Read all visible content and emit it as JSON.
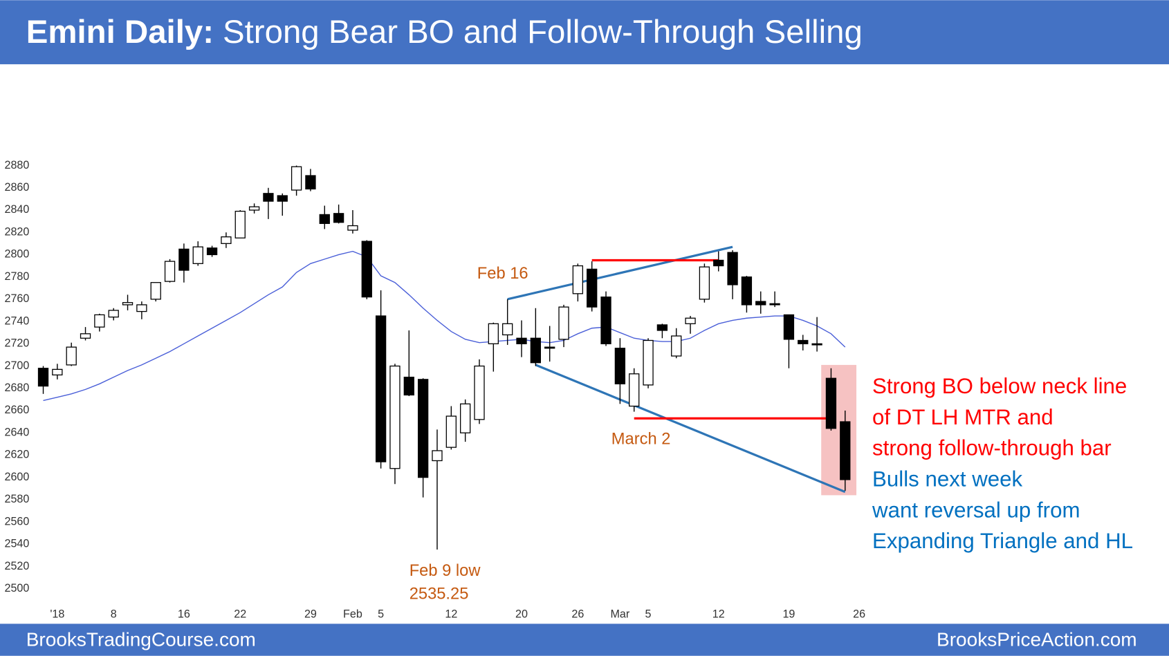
{
  "chart_data": {
    "type": "candlestick",
    "title": "Emini Daily:",
    "subtitle": "Strong Bear BO and Follow-Through Selling",
    "footer_left": "BrooksTradingCourse.com",
    "footer_right": "BrooksPriceAction.com",
    "banner_color": "#4472c4",
    "up_color": "#ffffff",
    "down_color": "#000000",
    "open": [
      2698,
      2692,
      2701,
      2725,
      2735,
      2744,
      2755,
      2749,
      2760,
      2776,
      2805,
      2792,
      2806,
      2810,
      2815,
      2840,
      2855,
      2853,
      2858,
      2871,
      2836,
      2837,
      2822,
      2812,
      2745,
      2608,
      2690,
      2688,
      2615,
      2627,
      2640,
      2652,
      2720,
      2728,
      2725,
      2725,
      2717,
      2724,
      2765,
      2787,
      2762,
      2716,
      2664,
      2683,
      2737,
      2709,
      2738,
      2760,
      2795,
      2802,
      2780,
      2758,
      2756,
      2746,
      2723,
      2720,
      2689,
      2650
    ],
    "high": [
      2700,
      2702,
      2721,
      2735,
      2747,
      2752,
      2764,
      2758,
      2775,
      2796,
      2810,
      2812,
      2808,
      2820,
      2840,
      2846,
      2860,
      2855,
      2880,
      2877,
      2844,
      2845,
      2840,
      2813,
      2768,
      2702,
      2732,
      2689,
      2643,
      2664,
      2670,
      2706,
      2739,
      2760,
      2741,
      2752,
      2736,
      2755,
      2792,
      2794,
      2767,
      2725,
      2698,
      2725,
      2738,
      2734,
      2745,
      2792,
      2803,
      2804,
      2781,
      2767,
      2767,
      2746,
      2728,
      2744,
      2698,
      2660
    ],
    "low": [
      2675,
      2688,
      2700,
      2723,
      2731,
      2741,
      2750,
      2742,
      2758,
      2775,
      2775,
      2790,
      2798,
      2806,
      2815,
      2837,
      2832,
      2835,
      2853,
      2857,
      2823,
      2828,
      2819,
      2760,
      2608,
      2594,
      2673,
      2582,
      2535.25,
      2625,
      2632,
      2648,
      2695,
      2719,
      2708,
      2700,
      2704,
      2717,
      2758,
      2749,
      2718,
      2666,
      2659,
      2680,
      2725,
      2707,
      2729,
      2757,
      2785,
      2760,
      2748,
      2747,
      2753,
      2698,
      2714,
      2713,
      2642,
      2588
    ],
    "close": [
      2682,
      2697,
      2717,
      2729,
      2746,
      2750,
      2757,
      2755,
      2775,
      2794,
      2786,
      2807,
      2800,
      2816,
      2839,
      2843,
      2848,
      2848,
      2879,
      2859,
      2828,
      2829,
      2826,
      2762,
      2614,
      2700,
      2674,
      2600,
      2624,
      2655,
      2666,
      2700,
      2738,
      2738,
      2720,
      2703,
      2716,
      2753,
      2790,
      2753,
      2720,
      2684,
      2693,
      2723,
      2732,
      2727,
      2743,
      2789,
      2790,
      2773,
      2755,
      2755,
      2755,
      2724,
      2720,
      2719,
      2644,
      2598
    ],
    "ma": {
      "color": "#4a5fd8",
      "values": [
        2669,
        2672,
        2675,
        2679,
        2684,
        2690,
        2696,
        2701,
        2707,
        2713,
        2720,
        2727,
        2734,
        2741,
        2748,
        2756,
        2764,
        2771,
        2784,
        2792,
        2796,
        2800,
        2803,
        2798,
        2781,
        2775,
        2764,
        2752,
        2741,
        2731,
        2724,
        2721,
        2722,
        2723,
        2724,
        2722,
        2721,
        2723,
        2729,
        2734,
        2735,
        2730,
        2725,
        2723,
        2722,
        2722,
        2725,
        2732,
        2738,
        2741,
        2743,
        2744,
        2745,
        2745,
        2741,
        2736,
        2729,
        2717
      ]
    },
    "trendlines": [
      {
        "color": "#2e75b6",
        "x": [
          33,
          49
        ],
        "y": [
          2760,
          2807
        ]
      },
      {
        "color": "#2e75b6",
        "x": [
          35,
          57
        ],
        "y": [
          2701,
          2587
        ]
      },
      {
        "color": "#ff0000",
        "x": [
          39,
          48
        ],
        "y": [
          2795,
          2795
        ]
      },
      {
        "color": "#ff0000",
        "x": [
          42,
          56
        ],
        "y": [
          2653,
          2653
        ]
      }
    ],
    "highlight": {
      "color": "#f6c2c2",
      "x": [
        56,
        57
      ],
      "y": [
        2584,
        2701
      ]
    },
    "annotations": [
      {
        "text": "Feb 16",
        "color": "#c55a11"
      },
      {
        "text": "March 2",
        "color": "#c55a11"
      },
      {
        "text": "Feb 9 low",
        "color": "#c55a11"
      },
      {
        "text": "2535.25",
        "color": "#c55a11"
      }
    ],
    "notes": [
      {
        "text": "Strong BO below neck line",
        "color": "#ff0000"
      },
      {
        "text": "of DT LH MTR and",
        "color": "#ff0000"
      },
      {
        "text": "strong follow-through bar",
        "color": "#ff0000"
      },
      {
        "text": "Bulls next week",
        "color": "#0070c0"
      },
      {
        "text": "want reversal up from",
        "color": "#0070c0"
      },
      {
        "text": "Expanding Triangle and HL",
        "color": "#0070c0"
      }
    ],
    "xlim": [
      -2,
      60
    ],
    "xticks": [
      {
        "value": 1,
        "label": "'18"
      },
      {
        "value": 5,
        "label": "8"
      },
      {
        "value": 10,
        "label": "16"
      },
      {
        "value": 14,
        "label": "22"
      },
      {
        "value": 19,
        "label": "29"
      },
      {
        "value": 22,
        "label": "Feb"
      },
      {
        "value": 24,
        "label": "5"
      },
      {
        "value": 29,
        "label": "12"
      },
      {
        "value": 34,
        "label": "20"
      },
      {
        "value": 38,
        "label": "26"
      },
      {
        "value": 41,
        "label": "Mar"
      },
      {
        "value": 43,
        "label": "5"
      },
      {
        "value": 48,
        "label": "12"
      },
      {
        "value": 53,
        "label": "19"
      },
      {
        "value": 58,
        "label": "26"
      }
    ],
    "ylim": [
      2500,
      2880
    ],
    "yticks": [
      2500,
      2520,
      2540,
      2560,
      2580,
      2600,
      2620,
      2640,
      2660,
      2680,
      2700,
      2720,
      2740,
      2760,
      2780,
      2800,
      2820,
      2840,
      2860,
      2880
    ]
  }
}
